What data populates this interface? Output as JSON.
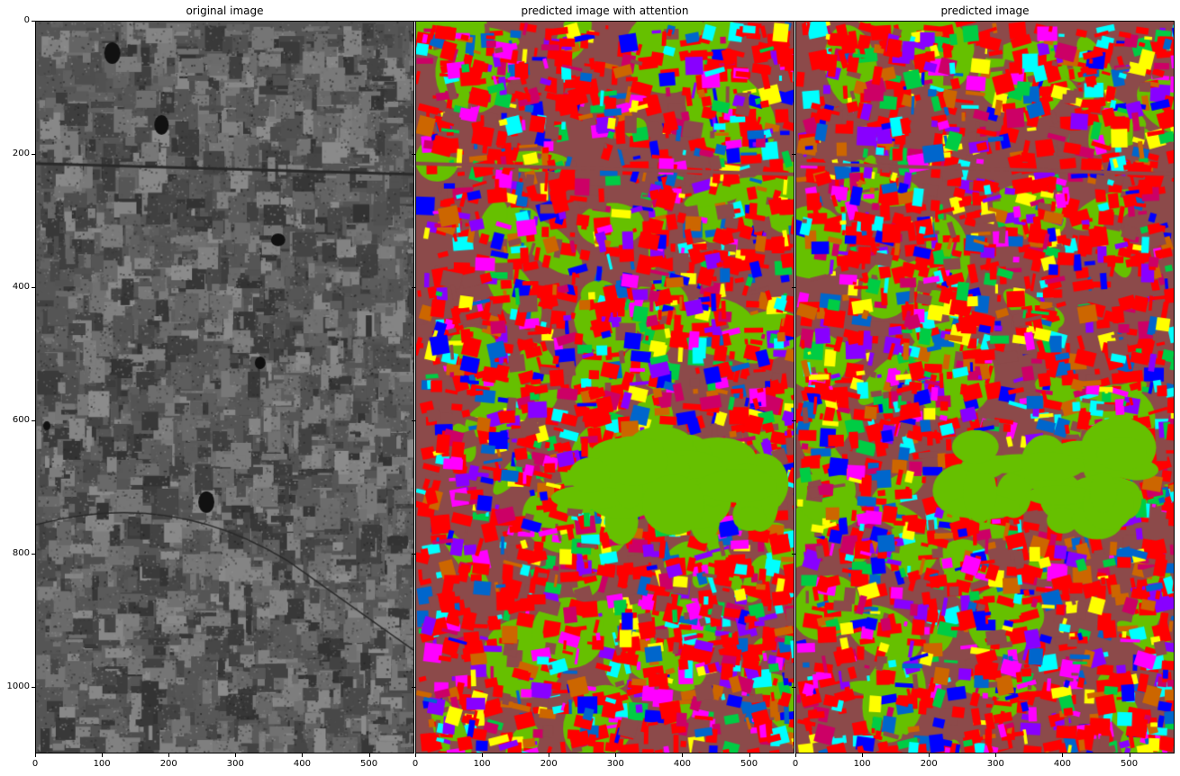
{
  "panels": [
    {
      "id": "orig",
      "title": "original image",
      "kind": "gray"
    },
    {
      "id": "att",
      "title": "predicted image with attention",
      "kind": "seg"
    },
    {
      "id": "pred",
      "title": "predicted image",
      "kind": "seg"
    }
  ],
  "axes": {
    "x_ticks": [
      "0",
      "100",
      "200",
      "300",
      "400",
      "500"
    ],
    "x_tick_values": [
      0,
      100,
      200,
      300,
      400,
      500
    ],
    "x_max": 568,
    "y_ticks": [
      "0",
      "200",
      "400",
      "600",
      "800",
      "1000"
    ],
    "y_tick_values": [
      0,
      200,
      400,
      600,
      800,
      1000
    ],
    "y_max": 1100
  },
  "colors": {
    "seg_palette": [
      "#ff0000",
      "#66c000",
      "#8c4a4a",
      "#0066cc",
      "#00ffff",
      "#ff00ff",
      "#ffff00",
      "#cc6600",
      "#0000ff",
      "#cc0066",
      "#00cc44",
      "#8800ff"
    ],
    "frame": "#000000",
    "background": "#ffffff"
  }
}
